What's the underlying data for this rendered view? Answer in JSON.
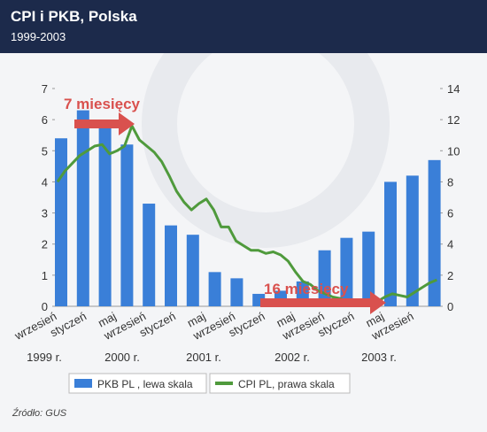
{
  "chart_data": {
    "type": "bar-line",
    "title": "CPI i PKB, Polska",
    "subtitle": "1999-2003",
    "x_labels": [
      "wrzesień",
      "styczeń",
      "maj",
      "wrzesień",
      "styczeń",
      "maj",
      "wrzesień",
      "styczeń",
      "maj",
      "wrzesień",
      "styczeń",
      "maj",
      "wrzesień"
    ],
    "year_labels": [
      "1999 r.",
      "2000 r.",
      "2001 r.",
      "2002 r.",
      "2003 r."
    ],
    "series": [
      {
        "name": "PKB PL , lewa skala",
        "color": "#3a7fd8",
        "kind": "bar",
        "values": [
          5.4,
          6.3,
          6.0,
          5.2,
          3.3,
          2.6,
          2.3,
          1.1,
          0.9,
          0.4,
          0.5,
          0.8,
          1.8,
          2.2,
          2.4,
          4.0,
          4.2,
          4.7
        ]
      },
      {
        "name": "CPI PL, prawa skala",
        "color": "#4f9a3c",
        "kind": "line",
        "axis": "y2",
        "values": [
          8.0,
          8.7,
          9.2,
          9.7,
          10.0,
          10.3,
          10.4,
          9.8,
          10.0,
          10.3,
          11.6,
          10.7,
          10.3,
          9.9,
          9.3,
          8.4,
          7.4,
          6.7,
          6.2,
          6.6,
          6.9,
          6.2,
          5.1,
          5.1,
          4.2,
          3.9,
          3.6,
          3.6,
          3.4,
          3.5,
          3.3,
          2.9,
          2.2,
          1.6,
          1.4,
          1.0,
          0.8,
          0.6,
          0.5,
          0.3,
          0.3,
          0.4,
          0.4,
          0.3,
          0.6,
          0.8,
          0.7,
          0.6,
          0.9,
          1.2,
          1.5,
          1.7
        ]
      }
    ],
    "ylim": [
      0,
      7
    ],
    "yticks": [
      0,
      1,
      2,
      3,
      4,
      5,
      6,
      7
    ],
    "y2lim": [
      0,
      14
    ],
    "y2ticks": [
      0,
      2,
      4,
      6,
      8,
      10,
      12,
      14
    ],
    "annotations": [
      "7 miesięcy",
      "16 miesięcy"
    ],
    "source": "Źródło: GUS"
  }
}
